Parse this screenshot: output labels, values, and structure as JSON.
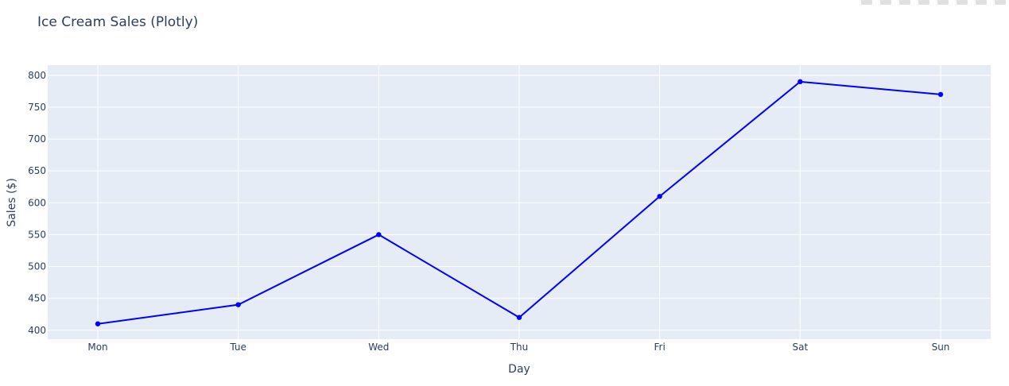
{
  "chart_data": {
    "type": "line",
    "title": "Ice Cream Sales (Plotly)",
    "xlabel": "Day",
    "ylabel": "Sales ($)",
    "categories": [
      "Mon",
      "Tue",
      "Wed",
      "Thu",
      "Fri",
      "Sat",
      "Sun"
    ],
    "series": [
      {
        "name": "Sales",
        "values": [
          410,
          440,
          550,
          420,
          610,
          790,
          770
        ]
      }
    ],
    "ylim": [
      386,
      816
    ],
    "yticks": [
      400,
      450,
      500,
      550,
      600,
      650,
      700,
      750,
      800
    ],
    "grid": true,
    "line_color": "#0000ff",
    "plot_bg": "#e5ecf6",
    "grid_color": "#ffffff",
    "text_color": "#2a3f5f"
  },
  "modebar": {
    "icons": [
      "camera-icon",
      "zoom-icon",
      "pan-icon",
      "box-select-icon",
      "lasso-icon",
      "zoom-in-icon",
      "zoom-out-icon",
      "autoscale-icon"
    ]
  }
}
